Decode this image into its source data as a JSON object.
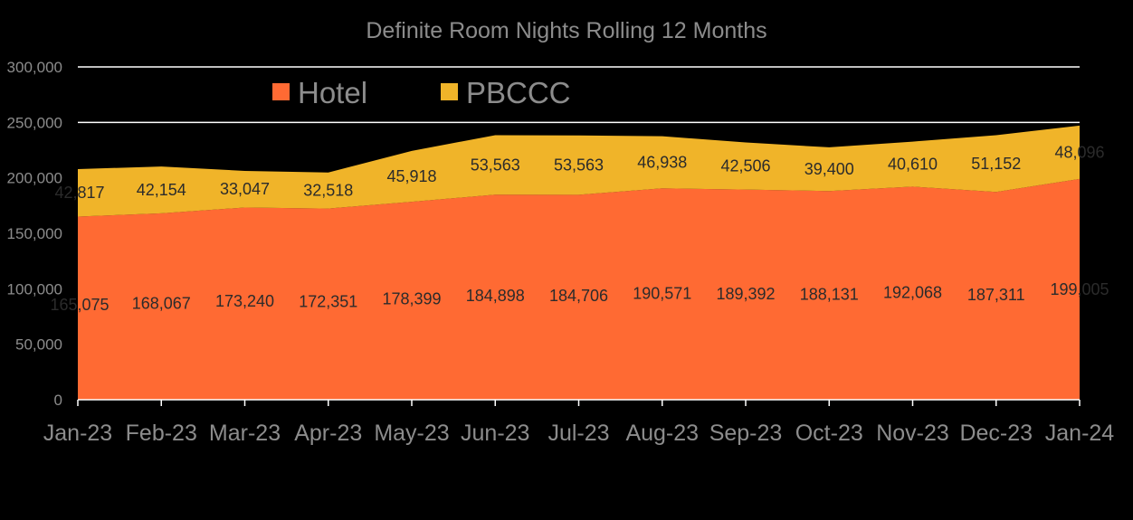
{
  "chart_data": {
    "type": "area",
    "stacked": true,
    "title": "Definite Room Nights  Rolling  12 Months",
    "categories": [
      "Jan-23",
      "Feb-23",
      "Mar-23",
      "Apr-23",
      "May-23",
      "Jun-23",
      "Jul-23",
      "Aug-23",
      "Sep-23",
      "Oct-23",
      "Nov-23",
      "Dec-23",
      "Jan-24"
    ],
    "series": [
      {
        "name": "Hotel",
        "color": "#ff6a33",
        "values": [
          165075,
          168067,
          173240,
          172351,
          178399,
          184898,
          184706,
          190571,
          189392,
          188131,
          192068,
          187311,
          199005
        ],
        "labels": [
          "165,075",
          "168,067",
          "173,240",
          "172,351",
          "178,399",
          "184,898",
          "184,706",
          "190,571",
          "189,392",
          "188,131",
          "192,068",
          "187,311",
          "199,005"
        ]
      },
      {
        "name": "PBCCC",
        "color": "#f0b429",
        "values": [
          42817,
          42154,
          33047,
          32518,
          45918,
          53563,
          53563,
          46938,
          42506,
          39400,
          40610,
          51152,
          48096
        ],
        "labels": [
          "42,817",
          "42,154",
          "33,047",
          "32,518",
          "45,918",
          "53,563",
          "53,563",
          "46,938",
          "42,506",
          "39,400",
          "40,610",
          "51,152",
          "48,096"
        ]
      }
    ],
    "ylim": [
      0,
      300000
    ],
    "yticks": [
      0,
      50000,
      100000,
      150000,
      200000,
      250000,
      300000
    ],
    "ytick_labels": [
      "0",
      "50,000",
      "100,000",
      "150,000",
      "200,000",
      "250,000",
      "300,000"
    ],
    "grid": true,
    "legend_position": "top-left"
  }
}
